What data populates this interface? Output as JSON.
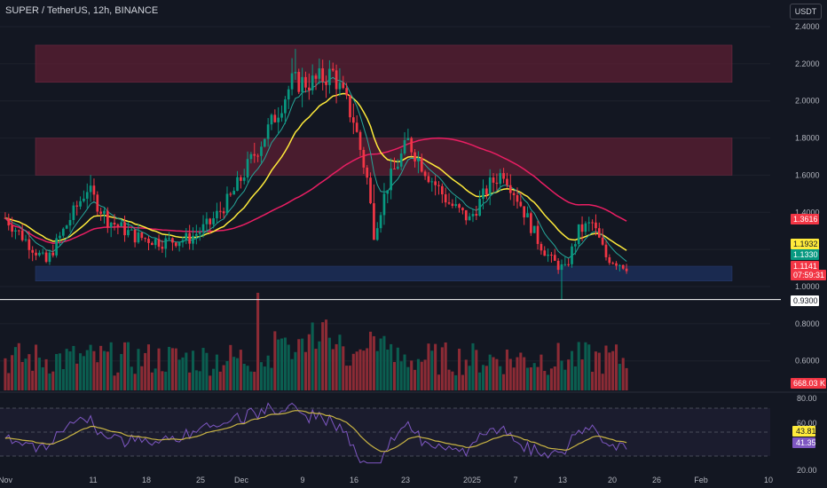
{
  "header": {
    "title": "SUPER / TetherUS, 12h, BINANCE"
  },
  "toolbar": {
    "currency": "USDT"
  },
  "colors": {
    "background": "#131722",
    "bull": "#089981",
    "bear": "#f23645",
    "ema_fast": "#26a69a",
    "ema_mid": "#ffeb3b",
    "ma_long": "#e91e63",
    "zone_red": "#5c1f33",
    "zone_blue": "#1c2c55",
    "rsi": "#7e57c2",
    "rsi_ma": "#c9b444"
  },
  "chart_data": {
    "type": "candlestick",
    "price_axis": {
      "ticks": [
        "2.4000",
        "2.2000",
        "2.0000",
        "1.8000",
        "1.6000",
        "1.4000",
        "1.2000",
        "1.0000",
        "0.8000",
        "0.6000"
      ],
      "ylim": [
        0.52,
        2.42
      ]
    },
    "x_axis": {
      "labels": [
        "Nov",
        "11",
        "18",
        "25",
        "Dec",
        "9",
        "16",
        "23",
        "2025",
        "7",
        "13",
        "20",
        "26",
        "Feb",
        "10"
      ]
    },
    "price_labels": [
      {
        "text": "1.3616",
        "bg": "#f23645",
        "fg": "#ffffff",
        "value": 1.3616
      },
      {
        "text": "1.1932",
        "bg": "#ffeb3b",
        "fg": "#131722",
        "value": 1.1932
      },
      {
        "text": "1.1330",
        "bg": "#089981",
        "fg": "#ffffff",
        "value": 1.133
      },
      {
        "text": "1.1141",
        "bg": "#f23645",
        "fg": "#ffffff",
        "value": 1.1141
      },
      {
        "text": "07:59:31",
        "bg": "#f23645",
        "fg": "#ffffff",
        "value": 1.06
      },
      {
        "text": "0.9300",
        "bg": "#ffffff",
        "fg": "#131722",
        "value": 0.93
      }
    ],
    "volume_label": "668.03 K",
    "rsi_panel": {
      "ticks": [
        "80.00",
        "60.00",
        "20.00"
      ],
      "value_labels": [
        {
          "text": "43.81",
          "bg": "#ffeb3b",
          "fg": "#131722"
        },
        {
          "text": "41.35",
          "bg": "#7e57c2",
          "fg": "#ffffff"
        }
      ]
    },
    "zones": [
      {
        "kind": "resistance",
        "from": 2.1,
        "to": 2.3
      },
      {
        "kind": "resistance",
        "from": 1.6,
        "to": 1.8
      },
      {
        "kind": "support",
        "from": 1.03,
        "to": 1.11
      }
    ],
    "horizontal_line": 0.93,
    "key_points": [
      {
        "bar": 0,
        "price": 1.37
      },
      {
        "bar": 6,
        "price": 1.25
      },
      {
        "bar": 12,
        "price": 1.13
      },
      {
        "bar": 17,
        "price": 1.3
      },
      {
        "bar": 24,
        "price": 1.53
      },
      {
        "bar": 30,
        "price": 1.36
      },
      {
        "bar": 38,
        "price": 1.27
      },
      {
        "bar": 46,
        "price": 1.24
      },
      {
        "bar": 54,
        "price": 1.26
      },
      {
        "bar": 60,
        "price": 1.34
      },
      {
        "bar": 66,
        "price": 1.48
      },
      {
        "bar": 72,
        "price": 1.68
      },
      {
        "bar": 78,
        "price": 1.88
      },
      {
        "bar": 84,
        "price": 2.1
      },
      {
        "bar": 90,
        "price": 2.1
      },
      {
        "bar": 96,
        "price": 2.15
      },
      {
        "bar": 102,
        "price": 1.9
      },
      {
        "bar": 106,
        "price": 1.58
      },
      {
        "bar": 108,
        "price": 1.29
      },
      {
        "bar": 112,
        "price": 1.55
      },
      {
        "bar": 118,
        "price": 1.78
      },
      {
        "bar": 124,
        "price": 1.6
      },
      {
        "bar": 130,
        "price": 1.45
      },
      {
        "bar": 136,
        "price": 1.36
      },
      {
        "bar": 142,
        "price": 1.55
      },
      {
        "bar": 146,
        "price": 1.62
      },
      {
        "bar": 150,
        "price": 1.48
      },
      {
        "bar": 156,
        "price": 1.25
      },
      {
        "bar": 160,
        "price": 1.14
      },
      {
        "bar": 164,
        "price": 1.09
      },
      {
        "bar": 168,
        "price": 1.3
      },
      {
        "bar": 172,
        "price": 1.34
      },
      {
        "bar": 176,
        "price": 1.16
      },
      {
        "bar": 182,
        "price": 1.11
      }
    ]
  }
}
